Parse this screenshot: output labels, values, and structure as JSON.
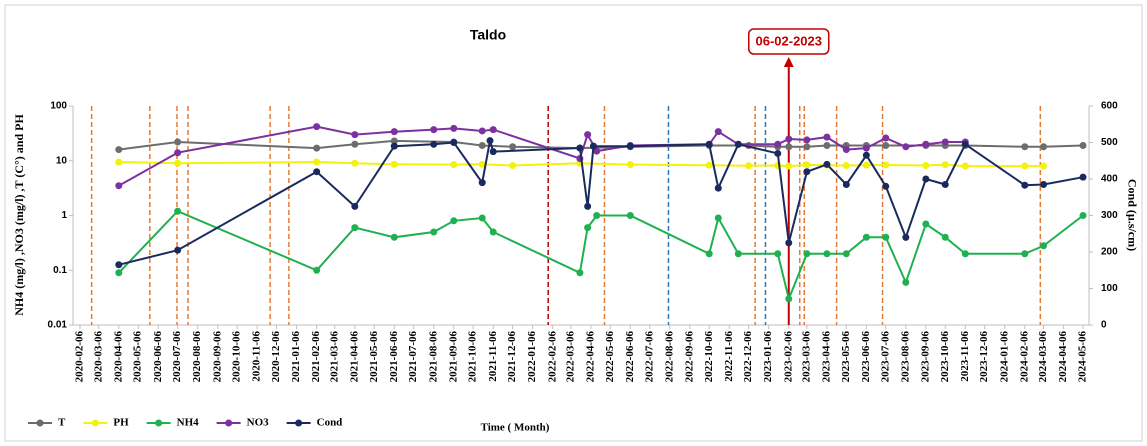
{
  "chart_data": {
    "type": "line",
    "title": "Taldo",
    "ylabel": "NH4 (mg/l) ,NO3 (mg/l) ,T (C°) and PH",
    "y2label": "Cond (µ.s/cm)",
    "xlabel": "Time ( Month)",
    "annotation": {
      "text": "06-02-2023",
      "x": "2023-02-06",
      "color": "#c00000"
    },
    "ylog": true,
    "ylim": [
      0.01,
      100
    ],
    "yticks": [
      0.01,
      0.1,
      1,
      10,
      100
    ],
    "y2lim": [
      0,
      600
    ],
    "y2ticks": [
      0,
      100,
      200,
      300,
      400,
      500,
      600
    ],
    "xlim": [
      "2020-02-06",
      "2024-05-06"
    ],
    "xticks": [
      "2020-02-06",
      "2020-03-06",
      "2020-04-06",
      "2020-05-06",
      "2020-06-06",
      "2020-07-06",
      "2020-08-06",
      "2020-09-06",
      "2020-10-06",
      "2020-11-06",
      "2020-12-06",
      "2021-01-06",
      "2021-02-06",
      "2021-03-06",
      "2021-04-06",
      "2021-05-06",
      "2021-06-06",
      "2021-07-06",
      "2021-08-06",
      "2021-09-06",
      "2021-10-06",
      "2021-11-06",
      "2021-12-06",
      "2022-01-06",
      "2022-02-06",
      "2022-03-06",
      "2022-04-06",
      "2022-05-06",
      "2022-06-06",
      "2022-07-06",
      "2022-08-06",
      "2022-09-06",
      "2022-10-06",
      "2022-11-06",
      "2022-12-06",
      "2023-01-06",
      "2023-02-06",
      "2023-03-06",
      "2023-04-06",
      "2023-05-06",
      "2023-06-06",
      "2023-07-06",
      "2023-08-06",
      "2023-09-06",
      "2023-10-06",
      "2023-11-06",
      "2023-12-06",
      "2024-01-06",
      "2024-02-06",
      "2024-03-06",
      "2024-04-06",
      "2024-05-06"
    ],
    "grid": false,
    "legend": "bottom-left",
    "vlines": [
      {
        "x": "2020-02-24",
        "color": "#e07b39"
      },
      {
        "x": "2020-05-24",
        "color": "#e07b39"
      },
      {
        "x": "2020-07-05",
        "color": "#e07b39"
      },
      {
        "x": "2020-07-22",
        "color": "#e07b39"
      },
      {
        "x": "2020-11-26",
        "color": "#e07b39"
      },
      {
        "x": "2020-12-25",
        "color": "#e07b39"
      },
      {
        "x": "2022-01-30",
        "color": "#c00000"
      },
      {
        "x": "2022-04-27",
        "color": "#e07b39"
      },
      {
        "x": "2022-08-04",
        "color": "#2e75b6"
      },
      {
        "x": "2022-12-16",
        "color": "#e07b39"
      },
      {
        "x": "2023-01-01",
        "color": "#2e75b6"
      },
      {
        "x": "2023-02-23",
        "color": "#e07b39"
      },
      {
        "x": "2023-03-02",
        "color": "#e07b39"
      },
      {
        "x": "2023-04-21",
        "color": "#e07b39"
      },
      {
        "x": "2023-07-01",
        "color": "#e07b39"
      },
      {
        "x": "2024-03-01",
        "color": "#e07b39"
      }
    ],
    "series": [
      {
        "name": "T",
        "color": "#6d6d6d",
        "x": [
          "2020-04-06",
          "2020-07-06",
          "2021-02-06",
          "2021-04-06",
          "2021-06-06",
          "2021-09-06",
          "2021-10-20",
          "2021-12-06",
          "2022-03-20",
          "2022-06-06",
          "2022-10-06",
          "2022-12-06",
          "2023-01-20",
          "2023-02-06",
          "2023-03-06",
          "2023-04-06",
          "2023-05-06",
          "2023-06-06",
          "2023-07-06",
          "2023-09-06",
          "2023-10-06",
          "2023-11-06",
          "2024-02-06",
          "2024-03-06",
          "2024-05-06"
        ],
        "values": [
          16,
          22,
          17,
          20,
          23,
          22,
          19,
          18,
          17,
          18,
          19,
          19,
          18,
          18,
          18,
          19,
          19,
          19,
          19,
          19,
          19,
          19,
          18,
          18,
          19
        ]
      },
      {
        "name": "PH",
        "color": "#f2f20c",
        "x": [
          "2020-04-06",
          "2020-07-06",
          "2021-02-06",
          "2021-04-06",
          "2021-06-06",
          "2021-09-06",
          "2021-10-20",
          "2021-12-06",
          "2022-03-20",
          "2022-06-06",
          "2022-10-06",
          "2022-12-06",
          "2023-01-20",
          "2023-02-06",
          "2023-03-06",
          "2023-04-06",
          "2023-05-06",
          "2023-06-06",
          "2023-07-06",
          "2023-09-06",
          "2023-10-06",
          "2023-11-06",
          "2024-02-06",
          "2024-03-06"
        ],
        "values": [
          9.5,
          9,
          9.5,
          9,
          8.6,
          8.5,
          8.6,
          8.2,
          9,
          8.5,
          8.3,
          8.1,
          8.2,
          8,
          8.4,
          8.3,
          8.2,
          8.3,
          8.4,
          8.2,
          8.5,
          8,
          8,
          8
        ]
      },
      {
        "name": "NH4",
        "color": "#1fb050",
        "x": [
          "2020-04-06",
          "2020-07-06",
          "2021-02-06",
          "2021-04-06",
          "2021-06-06",
          "2021-08-06",
          "2021-09-06",
          "2021-10-20",
          "2021-11-06",
          "2022-03-20",
          "2022-04-01",
          "2022-04-15",
          "2022-06-06",
          "2022-10-06",
          "2022-10-20",
          "2022-11-20",
          "2023-01-20",
          "2023-02-06",
          "2023-03-06",
          "2023-04-06",
          "2023-05-06",
          "2023-06-06",
          "2023-07-06",
          "2023-08-06",
          "2023-09-06",
          "2023-10-06",
          "2023-11-06",
          "2024-02-06",
          "2024-03-06",
          "2024-05-06"
        ],
        "values": [
          0.09,
          1.2,
          0.1,
          0.6,
          0.4,
          0.5,
          0.8,
          0.9,
          0.5,
          0.09,
          0.6,
          1,
          1,
          0.2,
          0.9,
          0.2,
          0.2,
          0.03,
          0.2,
          0.2,
          0.2,
          0.4,
          0.4,
          0.06,
          0.7,
          0.4,
          0.2,
          0.2,
          0.28,
          1
        ]
      },
      {
        "name": "NO3",
        "color": "#7d30a0",
        "x": [
          "2020-04-06",
          "2020-07-06",
          "2021-02-06",
          "2021-04-06",
          "2021-06-06",
          "2021-08-06",
          "2021-09-06",
          "2021-10-20",
          "2021-11-06",
          "2022-03-20",
          "2022-04-01",
          "2022-04-15",
          "2022-06-06",
          "2022-10-06",
          "2022-10-20",
          "2022-11-20",
          "2023-01-20",
          "2023-02-06",
          "2023-03-06",
          "2023-04-06",
          "2023-05-06",
          "2023-06-06",
          "2023-07-06",
          "2023-08-06",
          "2023-09-06",
          "2023-10-06",
          "2023-11-06"
        ],
        "values": [
          3.5,
          14,
          42,
          30,
          34,
          37,
          39,
          35,
          37,
          11,
          30,
          15,
          19,
          20,
          34,
          20,
          20,
          25,
          24,
          27,
          16,
          17,
          26,
          18,
          20,
          22,
          22
        ]
      },
      {
        "name": "Cond",
        "color": "#1a2a5e",
        "axis": "y2",
        "x": [
          "2020-04-06",
          "2020-07-06",
          "2021-02-06",
          "2021-04-06",
          "2021-06-06",
          "2021-08-06",
          "2021-09-06",
          "2021-10-20",
          "2021-11-01",
          "2021-11-06",
          "2022-03-20",
          "2022-04-01",
          "2022-04-10",
          "2022-06-06",
          "2022-10-06",
          "2022-10-20",
          "2022-11-20",
          "2023-01-20",
          "2023-02-06",
          "2023-03-06",
          "2023-04-06",
          "2023-05-06",
          "2023-06-06",
          "2023-07-06",
          "2023-08-06",
          "2023-09-06",
          "2023-10-06",
          "2023-11-06",
          "2024-02-06",
          "2024-03-06",
          "2024-05-06"
        ],
        "values": [
          165,
          205,
          420,
          325,
          490,
          495,
          500,
          390,
          505,
          475,
          485,
          325,
          490,
          490,
          495,
          375,
          495,
          470,
          225,
          420,
          440,
          385,
          465,
          380,
          240,
          400,
          385,
          495,
          383,
          385,
          405
        ]
      }
    ]
  }
}
